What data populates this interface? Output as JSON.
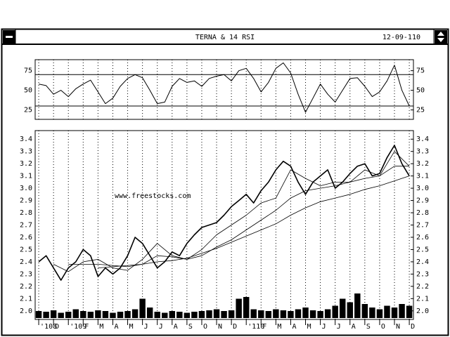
{
  "window": {
    "title": "TERNA & 14 RSI",
    "date": "12-09-110"
  },
  "chart_data": [
    {
      "type": "line",
      "name": "RSI",
      "x": [
        0,
        0.5,
        1,
        1.5,
        2,
        2.5,
        3,
        3.5,
        4,
        4.5,
        5,
        5.5,
        6,
        6.5,
        7,
        7.5,
        8,
        8.5,
        9,
        9.5,
        10,
        10.5,
        11,
        11.5,
        12,
        12.5,
        13,
        13.5,
        14,
        14.5,
        15,
        15.5,
        16,
        16.5,
        17,
        17.5,
        18,
        18.5,
        19,
        19.5,
        20,
        20.5,
        21,
        21.5,
        22,
        22.5,
        23,
        23.5,
        24,
        24.5,
        25
      ],
      "series": [
        {
          "color": "#000000",
          "values": [
            58,
            56,
            45,
            50,
            42,
            52,
            58,
            63,
            48,
            33,
            40,
            55,
            65,
            70,
            66,
            50,
            33,
            35,
            55,
            65,
            60,
            62,
            55,
            65,
            68,
            70,
            62,
            75,
            78,
            65,
            48,
            60,
            78,
            85,
            72,
            45,
            22,
            40,
            58,
            45,
            35,
            50,
            65,
            66,
            55,
            42,
            48,
            62,
            82,
            50,
            30
          ]
        }
      ],
      "levels": [
        30,
        70
      ],
      "xlim": [
        -0.24,
        25.28
      ],
      "ylim": [
        13,
        89
      ],
      "yticks": [
        25,
        50,
        75
      ]
    },
    {
      "type": "line",
      "annotation": "www.freestocks.com",
      "x": [
        0,
        0.5,
        1,
        1.5,
        2,
        2.5,
        3,
        3.5,
        4,
        4.5,
        5,
        5.5,
        6,
        6.5,
        7,
        7.5,
        8,
        8.5,
        9,
        9.5,
        10,
        10.5,
        11,
        11.5,
        12,
        12.5,
        13,
        13.5,
        14,
        14.5,
        15,
        15.5,
        16,
        16.5,
        17,
        17.5,
        18,
        18.5,
        19,
        19.5,
        20,
        20.5,
        21,
        21.5,
        22,
        22.5,
        23,
        23.5,
        24,
        24.5,
        25
      ],
      "series": [
        {
          "color": "#000000",
          "width": 1.6,
          "values": [
            2.4,
            2.45,
            2.35,
            2.25,
            2.35,
            2.4,
            2.5,
            2.45,
            2.28,
            2.35,
            2.3,
            2.35,
            2.45,
            2.6,
            2.55,
            2.45,
            2.35,
            2.4,
            2.48,
            2.45,
            2.55,
            2.62,
            2.68,
            2.7,
            2.72,
            2.78,
            2.85,
            2.9,
            2.95,
            2.88,
            2.98,
            3.05,
            3.15,
            3.22,
            3.18,
            3.05,
            2.95,
            3.05,
            3.1,
            3.15,
            3.0,
            3.05,
            3.12,
            3.18,
            3.2,
            3.1,
            3.12,
            3.25,
            3.35,
            3.2,
            3.1
          ]
        },
        {
          "color": "#000000",
          "width": 0.8,
          "x": [
            1,
            2,
            3,
            4,
            5,
            6,
            7,
            8,
            9,
            10,
            11,
            12,
            13,
            14,
            15,
            16,
            17,
            18,
            19,
            20,
            21,
            22,
            23,
            24,
            25
          ],
          "values": [
            2.38,
            2.32,
            2.4,
            2.42,
            2.35,
            2.33,
            2.42,
            2.55,
            2.45,
            2.42,
            2.5,
            2.62,
            2.7,
            2.78,
            2.88,
            2.92,
            3.15,
            3.08,
            3.02,
            3.05,
            3.05,
            3.15,
            3.1,
            3.3,
            3.18
          ]
        },
        {
          "color": "#000000",
          "width": 0.8,
          "x": [
            2,
            3,
            4,
            5,
            6,
            7,
            8,
            9,
            10,
            11,
            12,
            13,
            14,
            15,
            16,
            17,
            18,
            19,
            20,
            21,
            22,
            23,
            24,
            25
          ],
          "values": [
            2.38,
            2.38,
            2.38,
            2.37,
            2.36,
            2.38,
            2.45,
            2.44,
            2.42,
            2.45,
            2.52,
            2.58,
            2.66,
            2.74,
            2.82,
            2.92,
            2.98,
            3.0,
            3.02,
            3.05,
            3.08,
            3.1,
            3.18,
            3.18
          ]
        },
        {
          "color": "#000000",
          "width": 0.8,
          "x": [
            4,
            5,
            6,
            7,
            8,
            9,
            10,
            11,
            12,
            13,
            14,
            15,
            16,
            17,
            18,
            19,
            20,
            21,
            22,
            23,
            24,
            25
          ],
          "values": [
            2.35,
            2.36,
            2.37,
            2.38,
            2.4,
            2.41,
            2.43,
            2.47,
            2.51,
            2.56,
            2.61,
            2.66,
            2.71,
            2.78,
            2.84,
            2.89,
            2.92,
            2.95,
            2.99,
            3.02,
            3.06,
            3.1
          ]
        }
      ],
      "volume": {
        "color": "#000000",
        "ylim": [
          0,
          100
        ],
        "values": [
          20,
          18,
          22,
          15,
          18,
          25,
          20,
          18,
          22,
          20,
          15,
          18,
          20,
          25,
          55,
          30,
          18,
          15,
          20,
          18,
          15,
          18,
          20,
          22,
          25,
          20,
          22,
          55,
          60,
          25,
          22,
          20,
          25,
          22,
          20,
          25,
          30,
          22,
          20,
          25,
          35,
          55,
          45,
          70,
          40,
          30,
          25,
          35,
          30,
          40,
          35
        ]
      },
      "xlim": [
        -0.24,
        25.28
      ],
      "ylim": [
        1.93,
        3.47
      ],
      "xticks": [
        {
          "value": 0,
          "label": "'108"
        },
        {
          "value": 1,
          "label": "D"
        },
        {
          "value": 2,
          "label": "'109"
        },
        {
          "value": 3,
          "label": "F"
        },
        {
          "value": 4,
          "label": "M"
        },
        {
          "value": 5,
          "label": "A"
        },
        {
          "value": 6,
          "label": "M"
        },
        {
          "value": 7,
          "label": "J"
        },
        {
          "value": 8,
          "label": "J"
        },
        {
          "value": 9,
          "label": "A"
        },
        {
          "value": 10,
          "label": "S"
        },
        {
          "value": 11,
          "label": "O"
        },
        {
          "value": 12,
          "label": "N"
        },
        {
          "value": 13,
          "label": "D"
        },
        {
          "value": 14,
          "label": "'110"
        },
        {
          "value": 15,
          "label": "F"
        },
        {
          "value": 16,
          "label": "M"
        },
        {
          "value": 17,
          "label": "A"
        },
        {
          "value": 18,
          "label": "M"
        },
        {
          "value": 19,
          "label": "J"
        },
        {
          "value": 20,
          "label": "J"
        },
        {
          "value": 21,
          "label": "A"
        },
        {
          "value": 22,
          "label": "S"
        },
        {
          "value": 23,
          "label": "O"
        },
        {
          "value": 24,
          "label": "N"
        },
        {
          "value": 25,
          "label": "D"
        }
      ],
      "yticks": [
        {
          "value": 2,
          "label": "2.0"
        },
        2.1,
        2.2,
        2.3,
        2.4,
        2.5,
        2.6,
        2.7,
        2.8,
        2.9,
        {
          "value": 3,
          "label": "3.0"
        },
        3.1,
        3.2,
        3.3,
        3.4
      ],
      "grid": true
    }
  ]
}
